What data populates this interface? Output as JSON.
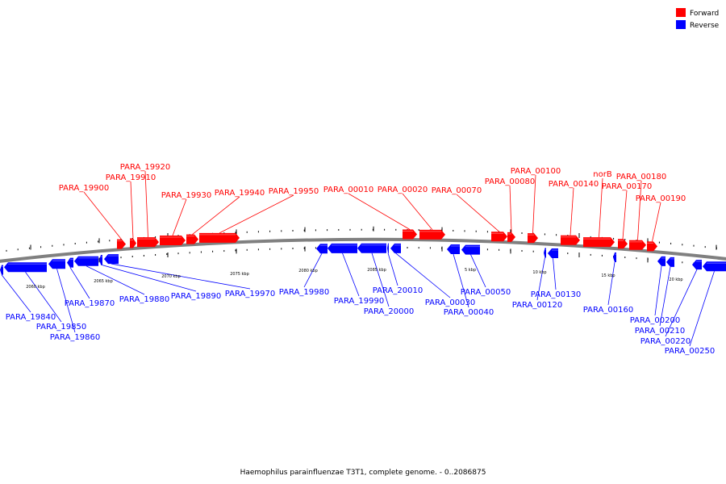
{
  "legend": {
    "items": [
      {
        "label": "Forward",
        "color": "#ff0000"
      },
      {
        "label": "Reverse",
        "color": "#0000ff"
      }
    ]
  },
  "backbone_color": "#808080",
  "scale_labels": [
    "2060 kbp",
    "2065 kbp",
    "2070 kbp",
    "2075 kbp",
    "2080 kbp",
    "2085 kbp",
    "5 kbp",
    "10 kbp",
    "15 kbp",
    "20 kbp"
  ],
  "forward_labels": [
    "PARA_19900",
    "PARA_19910",
    "PARA_19920",
    "PARA_19930",
    "PARA_19940",
    "PARA_19950",
    "PARA_00010",
    "PARA_00020",
    "PARA_00070",
    "PARA_00080",
    "PARA_00100",
    "PARA_00140",
    "norB",
    "PARA_00170",
    "PARA_00180",
    "PARA_00190"
  ],
  "reverse_labels": [
    "PARA_19840",
    "PARA_19850",
    "PARA_19860",
    "PARA_19870",
    "PARA_19880",
    "PARA_19890",
    "PARA_19970",
    "PARA_19980",
    "PARA_19990",
    "PARA_20000",
    "PARA_20010",
    "PARA_00030",
    "PARA_00040",
    "PARA_00050",
    "PARA_00120",
    "PARA_00130",
    "PARA_00160",
    "PARA_00200",
    "PARA_00210",
    "PARA_00220",
    "PARA_00250"
  ],
  "caption": "Haemophilus parainfluenzae T3T1, complete genome. - 0..2086875"
}
